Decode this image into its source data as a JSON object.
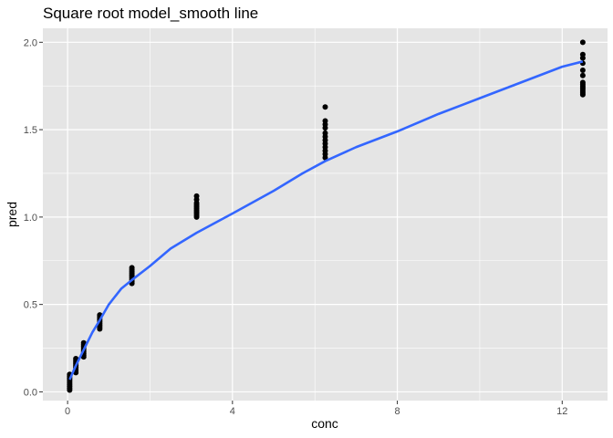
{
  "chart_data": {
    "type": "scatter",
    "title": "Square root model_smooth line",
    "xlabel": "conc",
    "ylabel": "pred",
    "xlim": [
      -0.6,
      13.1
    ],
    "ylim": [
      -0.05,
      2.08
    ],
    "x_ticks": [
      0,
      4,
      8,
      12
    ],
    "x_tick_labels": [
      "0",
      "4",
      "8",
      "12"
    ],
    "y_ticks": [
      0,
      0.5,
      1.0,
      1.5,
      2.0
    ],
    "y_tick_labels": [
      "0.0",
      "0.5",
      "1.0",
      "1.5",
      "2.0"
    ],
    "grid": true,
    "colors": {
      "panel": "#e5e5e5",
      "grid": "#ffffff",
      "points": "#000000",
      "smooth": "#3366ff"
    },
    "points": [
      {
        "x": 0.05,
        "y": [
          0.01,
          0.02,
          0.03,
          0.04,
          0.05,
          0.06,
          0.07,
          0.08,
          0.09,
          0.1
        ]
      },
      {
        "x": 0.2,
        "y": [
          0.11,
          0.12,
          0.13,
          0.14,
          0.15,
          0.16,
          0.17,
          0.18,
          0.19
        ]
      },
      {
        "x": 0.39,
        "y": [
          0.2,
          0.21,
          0.22,
          0.23,
          0.24,
          0.25,
          0.26,
          0.27,
          0.28
        ]
      },
      {
        "x": 0.78,
        "y": [
          0.36,
          0.37,
          0.38,
          0.39,
          0.4,
          0.41,
          0.42,
          0.43,
          0.44
        ]
      },
      {
        "x": 1.56,
        "y": [
          0.62,
          0.63,
          0.64,
          0.65,
          0.66,
          0.67,
          0.68,
          0.69,
          0.7,
          0.71
        ]
      },
      {
        "x": 3.13,
        "y": [
          1.0,
          1.01,
          1.02,
          1.03,
          1.04,
          1.05,
          1.06,
          1.07,
          1.08,
          1.1,
          1.12
        ]
      },
      {
        "x": 6.25,
        "y": [
          1.34,
          1.36,
          1.38,
          1.4,
          1.42,
          1.44,
          1.46,
          1.48,
          1.51,
          1.53,
          1.55,
          1.63
        ]
      },
      {
        "x": 12.5,
        "y": [
          1.7,
          1.71,
          1.72,
          1.73,
          1.74,
          1.75,
          1.76,
          1.77,
          1.81,
          1.84,
          1.88,
          1.91,
          1.93,
          2.0
        ]
      }
    ],
    "smooth_line": {
      "x": [
        0.05,
        0.2,
        0.39,
        0.6,
        0.78,
        1.0,
        1.3,
        1.56,
        2.0,
        2.5,
        3.13,
        4.0,
        5.0,
        5.7,
        6.25,
        7.0,
        8.0,
        9.0,
        10.0,
        11.0,
        12.0,
        12.5
      ],
      "y": [
        0.07,
        0.15,
        0.24,
        0.34,
        0.41,
        0.5,
        0.59,
        0.64,
        0.72,
        0.82,
        0.91,
        1.02,
        1.15,
        1.25,
        1.32,
        1.4,
        1.49,
        1.59,
        1.68,
        1.77,
        1.86,
        1.89
      ]
    }
  }
}
